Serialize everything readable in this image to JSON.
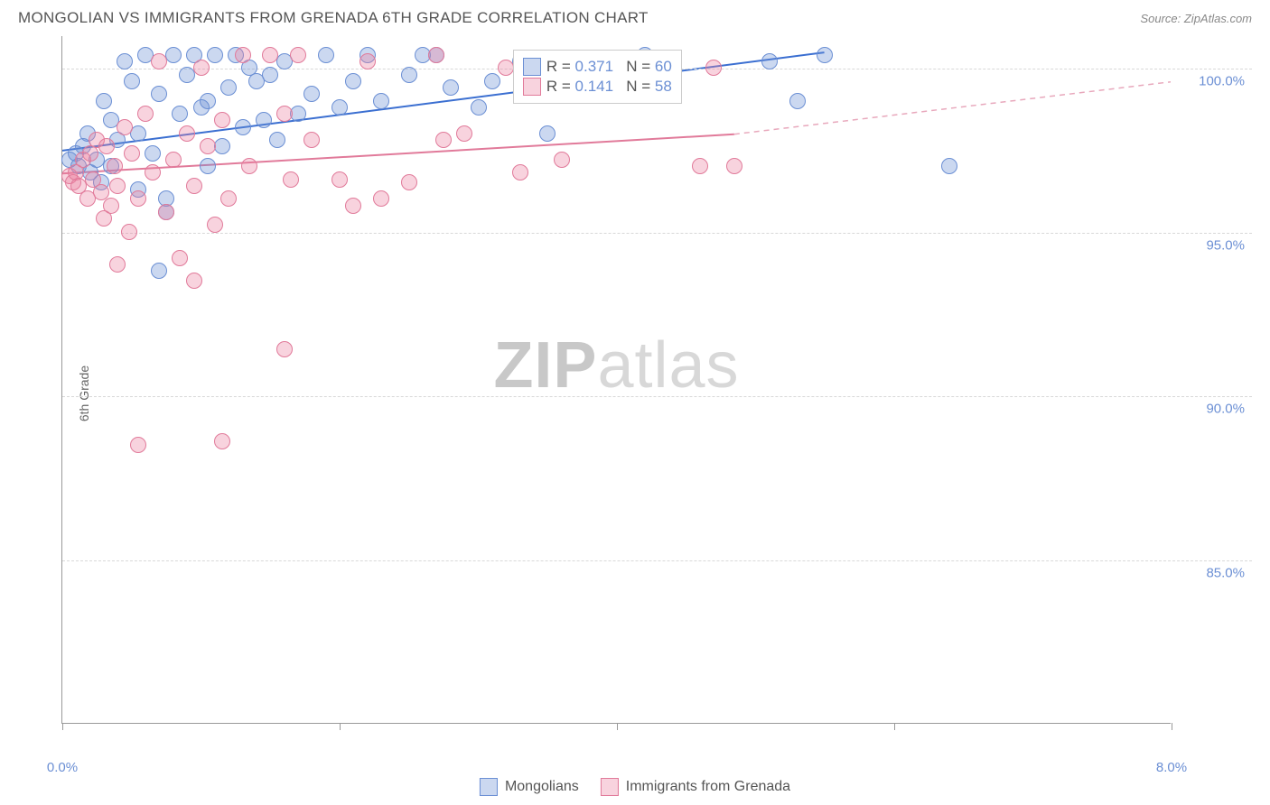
{
  "header": {
    "title": "MONGOLIAN VS IMMIGRANTS FROM GRENADA 6TH GRADE CORRELATION CHART",
    "source_label": "Source: ZipAtlas.com"
  },
  "chart": {
    "type": "scatter",
    "y_axis_label": "6th Grade",
    "xlim": [
      0,
      8
    ],
    "ylim": [
      80,
      101
    ],
    "x_ticks": [
      0,
      2,
      4,
      6,
      8
    ],
    "x_tick_labels": [
      "0.0%",
      "",
      "",
      "",
      "8.0%"
    ],
    "y_gridlines": [
      85,
      90,
      95,
      100
    ],
    "y_tick_labels": [
      "85.0%",
      "90.0%",
      "95.0%",
      "100.0%"
    ],
    "grid_color": "#d8d8d8",
    "axis_color": "#999999",
    "tick_label_color": "#6b8fd4",
    "background_color": "#ffffff",
    "watermark_text_bold": "ZIP",
    "watermark_text_light": "atlas",
    "series": [
      {
        "id": "mongolians",
        "label": "Mongolians",
        "color_fill": "rgba(107,143,212,0.35)",
        "color_stroke": "#6b8fd4",
        "marker_radius": 9,
        "r_value": "0.371",
        "n_value": "60",
        "trend": {
          "x1": 0,
          "y1": 97.5,
          "x2": 5.5,
          "y2": 100.5,
          "color": "#3b6fd1",
          "dash": "none",
          "width": 2
        },
        "points": [
          [
            0.05,
            97.2
          ],
          [
            0.1,
            97.4
          ],
          [
            0.12,
            97.0
          ],
          [
            0.15,
            97.6
          ],
          [
            0.18,
            98.0
          ],
          [
            0.2,
            96.8
          ],
          [
            0.25,
            97.2
          ],
          [
            0.3,
            99.0
          ],
          [
            0.35,
            98.4
          ],
          [
            0.4,
            97.8
          ],
          [
            0.45,
            100.2
          ],
          [
            0.5,
            99.6
          ],
          [
            0.55,
            98.0
          ],
          [
            0.6,
            100.4
          ],
          [
            0.65,
            97.4
          ],
          [
            0.7,
            99.2
          ],
          [
            0.75,
            96.0
          ],
          [
            0.8,
            100.4
          ],
          [
            0.85,
            98.6
          ],
          [
            0.9,
            99.8
          ],
          [
            0.95,
            100.4
          ],
          [
            1.0,
            98.8
          ],
          [
            1.05,
            99.0
          ],
          [
            1.1,
            100.4
          ],
          [
            1.15,
            97.6
          ],
          [
            1.2,
            99.4
          ],
          [
            1.25,
            100.4
          ],
          [
            1.3,
            98.2
          ],
          [
            1.35,
            100.0
          ],
          [
            1.4,
            99.6
          ],
          [
            1.45,
            98.4
          ],
          [
            1.5,
            99.8
          ],
          [
            1.55,
            97.8
          ],
          [
            1.6,
            100.2
          ],
          [
            1.7,
            98.6
          ],
          [
            1.8,
            99.2
          ],
          [
            1.9,
            100.4
          ],
          [
            2.0,
            98.8
          ],
          [
            2.1,
            99.6
          ],
          [
            2.2,
            100.4
          ],
          [
            2.3,
            99.0
          ],
          [
            2.5,
            99.8
          ],
          [
            2.6,
            100.4
          ],
          [
            2.7,
            100.4
          ],
          [
            2.8,
            99.4
          ],
          [
            3.0,
            98.8
          ],
          [
            3.1,
            99.6
          ],
          [
            3.3,
            100.2
          ],
          [
            3.5,
            98.0
          ],
          [
            4.2,
            100.4
          ],
          [
            5.1,
            100.2
          ],
          [
            5.3,
            99.0
          ],
          [
            5.5,
            100.4
          ],
          [
            6.4,
            97.0
          ],
          [
            0.7,
            93.8
          ],
          [
            0.75,
            95.6
          ],
          [
            0.35,
            97.0
          ],
          [
            0.55,
            96.3
          ],
          [
            1.05,
            97.0
          ],
          [
            0.28,
            96.5
          ]
        ]
      },
      {
        "id": "grenada",
        "label": "Immigrants from Grenada",
        "color_fill": "rgba(235,130,160,0.35)",
        "color_stroke": "#e17a9a",
        "marker_radius": 9,
        "r_value": "0.141",
        "n_value": "58",
        "trend": {
          "x1": 0,
          "y1": 96.8,
          "x2": 4.85,
          "y2": 98.0,
          "color": "#e17a9a",
          "dash": "none",
          "width": 2
        },
        "trend_ext": {
          "x1": 4.85,
          "y1": 98.0,
          "x2": 8.0,
          "y2": 99.6,
          "color": "#e8a8bc",
          "dash": "6,5",
          "width": 1.5
        },
        "points": [
          [
            0.05,
            96.7
          ],
          [
            0.08,
            96.5
          ],
          [
            0.1,
            96.8
          ],
          [
            0.12,
            96.4
          ],
          [
            0.15,
            97.2
          ],
          [
            0.18,
            96.0
          ],
          [
            0.2,
            97.4
          ],
          [
            0.22,
            96.6
          ],
          [
            0.25,
            97.8
          ],
          [
            0.28,
            96.2
          ],
          [
            0.3,
            95.4
          ],
          [
            0.32,
            97.6
          ],
          [
            0.35,
            95.8
          ],
          [
            0.38,
            97.0
          ],
          [
            0.4,
            96.4
          ],
          [
            0.45,
            98.2
          ],
          [
            0.48,
            95.0
          ],
          [
            0.5,
            97.4
          ],
          [
            0.55,
            96.0
          ],
          [
            0.6,
            98.6
          ],
          [
            0.65,
            96.8
          ],
          [
            0.7,
            100.2
          ],
          [
            0.75,
            95.6
          ],
          [
            0.8,
            97.2
          ],
          [
            0.85,
            94.2
          ],
          [
            0.9,
            98.0
          ],
          [
            0.95,
            96.4
          ],
          [
            1.0,
            100.0
          ],
          [
            1.05,
            97.6
          ],
          [
            1.1,
            95.2
          ],
          [
            1.15,
            98.4
          ],
          [
            1.2,
            96.0
          ],
          [
            1.3,
            100.4
          ],
          [
            1.35,
            97.0
          ],
          [
            1.5,
            100.4
          ],
          [
            1.6,
            98.6
          ],
          [
            1.65,
            96.6
          ],
          [
            1.7,
            100.4
          ],
          [
            1.8,
            97.8
          ],
          [
            2.0,
            96.6
          ],
          [
            2.1,
            95.8
          ],
          [
            2.2,
            100.2
          ],
          [
            2.3,
            96.0
          ],
          [
            2.5,
            96.5
          ],
          [
            2.7,
            100.4
          ],
          [
            2.75,
            97.8
          ],
          [
            2.9,
            98.0
          ],
          [
            3.2,
            100.0
          ],
          [
            3.3,
            96.8
          ],
          [
            3.6,
            97.2
          ],
          [
            4.6,
            97.0
          ],
          [
            4.7,
            100.0
          ],
          [
            4.85,
            97.0
          ],
          [
            1.6,
            91.4
          ],
          [
            0.55,
            88.5
          ],
          [
            1.15,
            88.6
          ],
          [
            0.95,
            93.5
          ],
          [
            0.4,
            94.0
          ]
        ]
      }
    ],
    "legend_box": {
      "r_label": "R =",
      "n_label": "N ="
    },
    "bottom_legend": {
      "items": [
        "Mongolians",
        "Immigrants from Grenada"
      ]
    }
  }
}
